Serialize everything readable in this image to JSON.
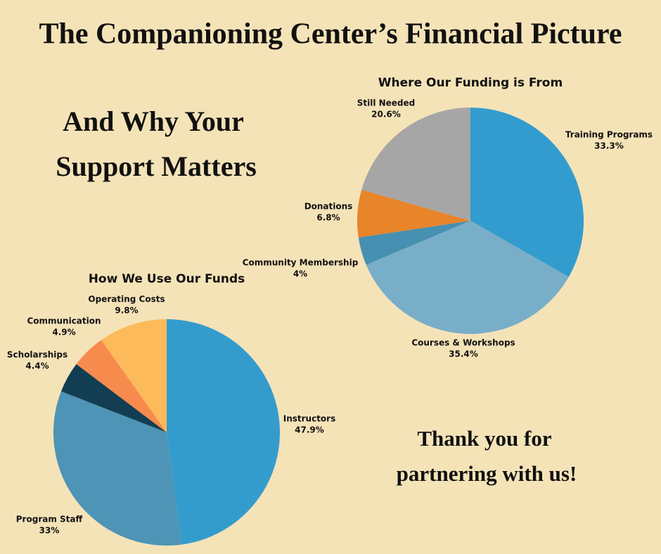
{
  "title": "The Companioning Center’s Financial Picture",
  "subtitle_lines": [
    "And Why Your",
    "Support Matters"
  ],
  "closing_lines": [
    "Thank you for",
    "partnering with us!"
  ],
  "chart_data": [
    {
      "type": "pie",
      "title": "Where Our Funding is From",
      "categories": [
        "Training Programs",
        "Courses & Workshops",
        "Community Membership",
        "Donations",
        "Still Needed"
      ],
      "values": [
        33.3,
        35.4,
        4,
        6.8,
        20.6
      ],
      "value_labels": [
        "33.3%",
        "35.4%",
        "4%",
        "6.8%",
        "20.6%"
      ],
      "colors": [
        "#339cce",
        "#79aec9",
        "#4690b1",
        "#e8842a",
        "#a6a6a6"
      ]
    },
    {
      "type": "pie",
      "title": "How We Use Our Funds",
      "categories": [
        "Instructors",
        "Program Staff",
        "Scholarships",
        "Communication",
        "Operating Costs"
      ],
      "values": [
        47.9,
        33,
        4.4,
        4.9,
        9.8
      ],
      "value_labels": [
        "47.9%",
        "33%",
        "4.4%",
        "4.9%",
        "9.8%"
      ],
      "colors": [
        "#349ccd",
        "#4d94b6",
        "#133d52",
        "#f68b4d",
        "#fdba5b"
      ]
    }
  ]
}
